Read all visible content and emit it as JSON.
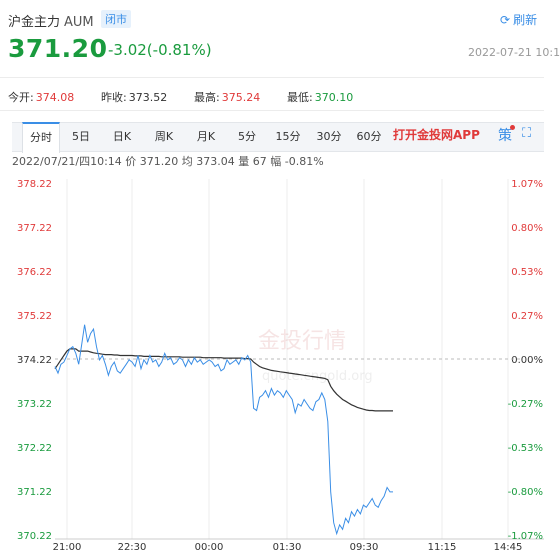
{
  "header": {
    "name": "沪金主力",
    "code": "AUM",
    "status": "闭市",
    "refresh_label": "刷新",
    "price": "371.20",
    "change": "-3.02(-0.81%)",
    "datetime": "2022-07-21 10:1"
  },
  "stats": [
    {
      "label": "今开:",
      "value": "374.08",
      "color": "#e03a3a"
    },
    {
      "label": "昨收:",
      "value": "373.52",
      "color": "#333333"
    },
    {
      "label": "最高:",
      "value": "375.24",
      "color": "#e03a3a"
    },
    {
      "label": "最低:",
      "value": "370.10",
      "color": "#1a9b3e"
    }
  ],
  "tabs": [
    "分时",
    "5日",
    "日K",
    "周K",
    "月K",
    "5分",
    "15分",
    "30分",
    "60分"
  ],
  "active_tab": 0,
  "app_link": "打开金投网APP",
  "toolbar_icons": [
    "policy-icon",
    "fullscreen-icon"
  ],
  "info_line": "2022/07/21/四10:14  价 371.20  均 373.04  量 67  幅 -0.81%",
  "watermark": {
    "brand": "金投行情",
    "url": "quote.cngold.org"
  },
  "colors": {
    "up": "#e03a3a",
    "down": "#1a9b3e",
    "price_line": "#3a8ee6",
    "avg_line": "#333333",
    "accent": "#3a8ee6"
  },
  "chart_data": {
    "type": "line",
    "ylim": [
      370.22,
      378.22
    ],
    "y_ticks": [
      "378.22",
      "377.22",
      "376.22",
      "375.22",
      "374.22",
      "373.22",
      "372.22",
      "371.22",
      "370.22"
    ],
    "pct_ticks": [
      "1.07%",
      "0.80%",
      "0.53%",
      "0.27%",
      "0.00%",
      "-0.27%",
      "-0.53%",
      "-0.80%",
      "-1.07%"
    ],
    "x_ticks": [
      "21:00",
      "22:30",
      "00:00",
      "01:30",
      "09:30",
      "11:15",
      "14:45"
    ],
    "baseline": 374.22,
    "series": [
      {
        "values": [
          374.05,
          373.9,
          374.1,
          374.15,
          374.3,
          374.45,
          374.5,
          374.35,
          374.1,
          374.55,
          375.0,
          374.6,
          374.8,
          374.9,
          374.5,
          374.2,
          374.3,
          374.1,
          373.85,
          374.05,
          374.15,
          373.95,
          373.9,
          374.0,
          374.1,
          374.2,
          374.15,
          374.05,
          374.3,
          374.0,
          374.2,
          374.1,
          374.3,
          374.15,
          374.2,
          374.05,
          374.15,
          374.35,
          374.2,
          374.25,
          374.1,
          374.15,
          374.25,
          374.2,
          374.05,
          374.2,
          374.1,
          374.25,
          374.15,
          374.2,
          374.1,
          374.15,
          374.2,
          374.15,
          374.05,
          374.1,
          373.95,
          374.0,
          374.2,
          374.1,
          374.15,
          374.2,
          374.1,
          374.25,
          374.2,
          374.3,
          374.15,
          373.1,
          373.05,
          373.35,
          373.4,
          373.5,
          373.35,
          373.55,
          373.4,
          373.5,
          373.45,
          373.35,
          373.5,
          373.4,
          373.3,
          373.0,
          373.2,
          373.15,
          373.3,
          373.2,
          373.1,
          373.05,
          373.25,
          373.3,
          373.45,
          373.3,
          372.8,
          371.2,
          370.5,
          370.25,
          370.45,
          370.35,
          370.6,
          370.5,
          370.75,
          370.65,
          370.8,
          370.7,
          370.9,
          370.85,
          370.95,
          371.05,
          370.9,
          370.85,
          371.0,
          371.1,
          371.3,
          371.2,
          371.2
        ]
      },
      {
        "values": [
          374.0,
          374.1,
          374.2,
          374.3,
          374.4,
          374.45,
          374.45,
          374.45,
          374.4,
          374.4,
          374.4,
          374.4,
          374.38,
          374.36,
          374.35,
          374.34,
          374.33,
          374.32,
          374.32,
          374.32,
          374.31,
          374.31,
          374.3,
          374.3,
          374.3,
          374.3,
          374.3,
          374.29,
          374.29,
          374.29,
          374.28,
          374.28,
          374.28,
          374.28,
          374.28,
          374.28,
          374.27,
          374.27,
          374.27,
          374.27,
          374.27,
          374.27,
          374.27,
          374.26,
          374.26,
          374.26,
          374.26,
          374.26,
          374.26,
          374.26,
          374.25,
          374.25,
          374.25,
          374.25,
          374.25,
          374.25,
          374.25,
          374.24,
          374.24,
          374.24,
          374.24,
          374.24,
          374.24,
          374.24,
          374.23,
          374.23,
          374.22,
          374.15,
          374.1,
          374.05,
          374.02,
          374.0,
          373.98,
          373.96,
          373.95,
          373.94,
          373.93,
          373.92,
          373.91,
          373.9,
          373.89,
          373.88,
          373.87,
          373.86,
          373.85,
          373.84,
          373.83,
          373.82,
          373.81,
          373.8,
          373.79,
          373.78,
          373.75,
          373.6,
          373.5,
          373.42,
          373.36,
          373.3,
          373.26,
          373.22,
          373.18,
          373.15,
          373.12,
          373.1,
          373.08,
          373.06,
          373.05,
          373.05,
          373.04,
          373.04,
          373.04,
          373.04,
          373.04,
          373.04,
          373.04
        ]
      }
    ]
  }
}
